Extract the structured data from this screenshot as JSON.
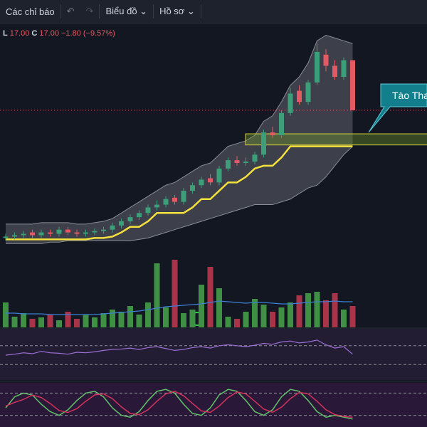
{
  "toolbar": {
    "indicators": "Các chỉ báo",
    "chart": "Biểu đồ",
    "profile": "Hồ sơ"
  },
  "legend": {
    "low_label": "L",
    "low": "17.00",
    "close_label": "C",
    "close": "17.00",
    "change": "−1.80 (−9.57%)"
  },
  "annotation": "Tào Tha",
  "chart_data": [
    {
      "type": "candlestick",
      "ylim": [
        12,
        20.2
      ],
      "up_color": "#3d9f7a",
      "down_color": "#e35a65",
      "open": [
        12.4,
        12.45,
        12.5,
        12.6,
        12.5,
        12.6,
        12.55,
        12.7,
        12.6,
        12.55,
        12.6,
        12.65,
        12.7,
        12.85,
        13.0,
        13.15,
        13.3,
        13.5,
        13.6,
        13.85,
        13.7,
        14.1,
        14.3,
        14.55,
        14.4,
        14.9,
        15.2,
        15.1,
        15.15,
        15.4,
        16.2,
        16.1,
        16.9,
        17.7,
        17.3,
        18.0,
        19.0,
        18.6,
        18.2,
        18.8
      ],
      "high": [
        12.55,
        12.6,
        12.65,
        12.7,
        12.7,
        12.7,
        12.8,
        12.8,
        12.7,
        12.7,
        12.75,
        12.8,
        12.95,
        13.1,
        13.25,
        13.4,
        13.6,
        13.75,
        13.9,
        13.95,
        14.2,
        14.4,
        14.6,
        14.7,
        15.0,
        15.3,
        15.35,
        15.3,
        15.5,
        16.3,
        16.4,
        17.0,
        17.8,
        17.9,
        18.1,
        19.4,
        19.2,
        18.8,
        18.9,
        18.8
      ],
      "low": [
        12.3,
        12.35,
        12.4,
        12.4,
        12.4,
        12.45,
        12.45,
        12.5,
        12.45,
        12.45,
        12.5,
        12.55,
        12.6,
        12.75,
        12.9,
        13.05,
        13.2,
        13.4,
        13.5,
        13.6,
        13.6,
        14.0,
        14.2,
        14.3,
        14.3,
        14.8,
        15.0,
        15.0,
        15.05,
        15.3,
        16.0,
        16.0,
        16.8,
        17.2,
        17.2,
        17.9,
        18.4,
        18.1,
        18.1,
        17.0
      ],
      "close": [
        12.45,
        12.5,
        12.55,
        12.5,
        12.6,
        12.55,
        12.7,
        12.6,
        12.55,
        12.6,
        12.65,
        12.7,
        12.85,
        13.0,
        13.15,
        13.3,
        13.5,
        13.6,
        13.8,
        13.7,
        14.1,
        14.3,
        14.5,
        14.4,
        14.9,
        15.2,
        15.1,
        15.15,
        15.4,
        16.2,
        16.1,
        16.9,
        17.6,
        17.3,
        18.0,
        19.1,
        18.6,
        18.2,
        18.8,
        17.0
      ],
      "upper_band": [
        12.9,
        12.9,
        12.9,
        12.9,
        12.95,
        12.95,
        12.95,
        12.95,
        12.9,
        12.9,
        12.95,
        13.0,
        13.1,
        13.3,
        13.5,
        13.7,
        13.9,
        14.1,
        14.3,
        14.4,
        14.6,
        14.8,
        15.0,
        15.1,
        15.4,
        15.7,
        15.8,
        15.9,
        16.1,
        16.6,
        16.8,
        17.3,
        17.9,
        18.2,
        18.7,
        19.5,
        19.7,
        19.6,
        19.5,
        19.4
      ],
      "lower_band": [
        12.2,
        12.2,
        12.2,
        12.2,
        12.2,
        12.25,
        12.25,
        12.3,
        12.3,
        12.3,
        12.3,
        12.3,
        12.3,
        12.3,
        12.3,
        12.35,
        12.4,
        12.5,
        12.6,
        12.7,
        12.8,
        12.9,
        13.0,
        13.1,
        13.2,
        13.3,
        13.4,
        13.5,
        13.6,
        13.6,
        13.6,
        13.7,
        13.8,
        14.0,
        14.2,
        14.3,
        14.6,
        15.0,
        15.4,
        15.7
      ],
      "trend_line": [
        12.35,
        12.35,
        12.35,
        12.35,
        12.35,
        12.35,
        12.35,
        12.35,
        12.35,
        12.35,
        12.4,
        12.4,
        12.45,
        12.6,
        12.8,
        12.8,
        13.0,
        13.3,
        13.3,
        13.3,
        13.3,
        13.5,
        13.8,
        13.8,
        14.1,
        14.4,
        14.4,
        14.6,
        14.9,
        15.0,
        15.0,
        15.3,
        15.7,
        15.7,
        15.7,
        15.7,
        15.7,
        15.7,
        15.7,
        15.7
      ],
      "trend_color": "#f5e13c",
      "zone": [
        15.75,
        16.15
      ]
    },
    {
      "type": "bar",
      "ylim": [
        0,
        110
      ],
      "up_color": "#3f8f45",
      "down_color": "#a83449",
      "average_color": "#3b7fd6",
      "values": [
        35,
        15,
        20,
        12,
        14,
        18,
        10,
        22,
        12,
        18,
        14,
        20,
        25,
        22,
        30,
        18,
        35,
        90,
        28,
        95,
        20,
        25,
        60,
        85,
        55,
        15,
        12,
        22,
        40,
        32,
        22,
        28,
        35,
        45,
        48,
        50,
        38,
        48,
        25,
        30
      ],
      "average": [
        20,
        20,
        19,
        19,
        19,
        18,
        18,
        18,
        18,
        18,
        18,
        19,
        20,
        21,
        22,
        23,
        25,
        27,
        29,
        30,
        31,
        32,
        33,
        35,
        37,
        36,
        35,
        34,
        35,
        35,
        34,
        33,
        33,
        34,
        35,
        36,
        36,
        37,
        36,
        36
      ]
    },
    {
      "type": "line",
      "ylim": [
        0,
        100
      ],
      "yticks": [
        30,
        70
      ],
      "color": "#9c6fd6",
      "values": [
        50,
        52,
        55,
        53,
        58,
        55,
        54,
        52,
        56,
        55,
        57,
        60,
        62,
        63,
        65,
        62,
        66,
        68,
        64,
        60,
        62,
        66,
        68,
        65,
        70,
        72,
        70,
        68,
        71,
        75,
        73,
        78,
        80,
        76,
        78,
        82,
        72,
        65,
        68,
        52
      ]
    },
    {
      "type": "line",
      "ylim": [
        0,
        100
      ],
      "yticks": [
        20,
        80
      ],
      "series": [
        {
          "color": "#62c26a",
          "values": [
            40,
            70,
            80,
            75,
            50,
            30,
            20,
            35,
            60,
            80,
            85,
            70,
            40,
            20,
            15,
            30,
            60,
            85,
            90,
            80,
            50,
            25,
            20,
            40,
            75,
            90,
            85,
            60,
            30,
            20,
            35,
            70,
            90,
            85,
            60,
            30,
            15,
            20,
            15,
            10
          ]
        },
        {
          "color": "#d2335c",
          "values": [
            45,
            55,
            63,
            75,
            68,
            52,
            33,
            28,
            38,
            58,
            75,
            78,
            65,
            43,
            25,
            22,
            35,
            58,
            78,
            85,
            73,
            52,
            32,
            28,
            45,
            68,
            83,
            78,
            58,
            37,
            28,
            42,
            65,
            82,
            78,
            58,
            35,
            22,
            17,
            15
          ]
        }
      ]
    }
  ]
}
